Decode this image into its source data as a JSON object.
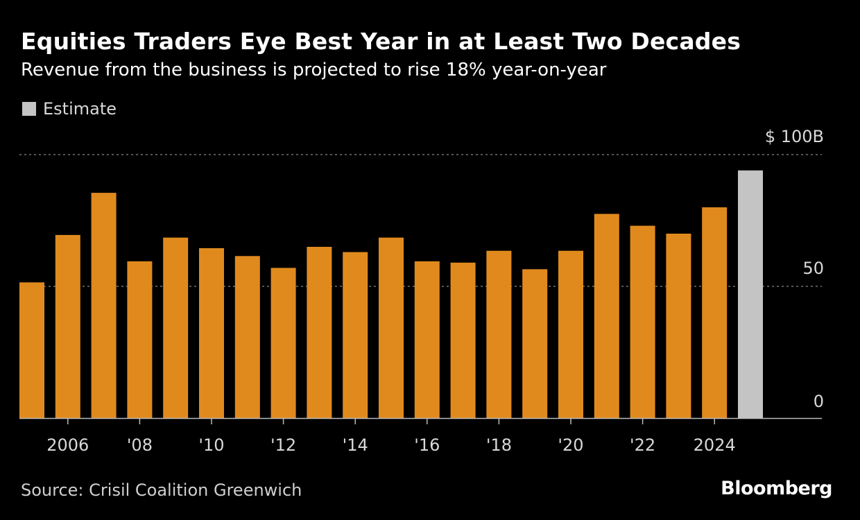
{
  "header": {
    "title": "Equities Traders Eye Best Year in at Least Two Decades",
    "subtitle": "Revenue from the business is projected to rise 18% year-on-year"
  },
  "legend": {
    "label": "Estimate"
  },
  "footer": {
    "source": "Source: Crisil Coalition Greenwich",
    "brand": "Bloomberg"
  },
  "colors": {
    "actual": "#e08a1e",
    "estimate": "#c4c4c4",
    "gridline": "#8a8a8a",
    "axis": "#bbbbbb",
    "background": "#000000"
  },
  "chart_data": {
    "type": "bar",
    "categories": [
      "2005",
      "2006",
      "2007",
      "2008",
      "2009",
      "2010",
      "2011",
      "2012",
      "2013",
      "2014",
      "2015",
      "2016",
      "2017",
      "2018",
      "2019",
      "2020",
      "2021",
      "2022",
      "2023",
      "2024",
      "2025"
    ],
    "values": [
      51.5,
      69.5,
      85.5,
      59.5,
      68.5,
      64.5,
      61.5,
      57,
      65,
      63,
      68.5,
      59.5,
      59,
      63.5,
      56.5,
      63.5,
      77.5,
      73,
      70,
      80,
      94
    ],
    "estimate": [
      false,
      false,
      false,
      false,
      false,
      false,
      false,
      false,
      false,
      false,
      false,
      false,
      false,
      false,
      false,
      false,
      false,
      false,
      false,
      false,
      true
    ],
    "x_tick_labels": [
      {
        "category": "2006",
        "label": "2006"
      },
      {
        "category": "2008",
        "label": "'08"
      },
      {
        "category": "2010",
        "label": "'10"
      },
      {
        "category": "2012",
        "label": "'12"
      },
      {
        "category": "2014",
        "label": "'14"
      },
      {
        "category": "2016",
        "label": "'16"
      },
      {
        "category": "2018",
        "label": "'18"
      },
      {
        "category": "2020",
        "label": "'20"
      },
      {
        "category": "2022",
        "label": "'22"
      },
      {
        "category": "2024",
        "label": "2024"
      }
    ],
    "y_ticks": [
      {
        "value": 0,
        "label": "0"
      },
      {
        "value": 50,
        "label": "50"
      },
      {
        "value": 100,
        "label": "$ 100B"
      }
    ],
    "ylim": [
      0,
      100
    ],
    "grid": "dashed-horizontal",
    "y_axis_side": "right",
    "legend_position": "top-left"
  }
}
